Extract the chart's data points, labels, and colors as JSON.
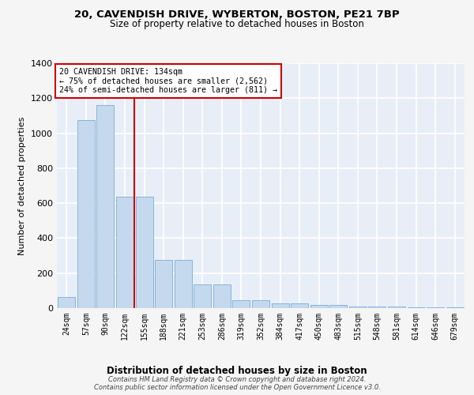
{
  "title": "20, CAVENDISH DRIVE, WYBERTON, BOSTON, PE21 7BP",
  "subtitle": "Size of property relative to detached houses in Boston",
  "xlabel": "Distribution of detached houses by size in Boston",
  "ylabel": "Number of detached properties",
  "categories": [
    "24sqm",
    "57sqm",
    "90sqm",
    "122sqm",
    "155sqm",
    "188sqm",
    "221sqm",
    "253sqm",
    "286sqm",
    "319sqm",
    "352sqm",
    "384sqm",
    "417sqm",
    "450sqm",
    "483sqm",
    "515sqm",
    "548sqm",
    "581sqm",
    "614sqm",
    "646sqm",
    "679sqm"
  ],
  "values": [
    65,
    1075,
    1160,
    635,
    635,
    275,
    275,
    135,
    135,
    45,
    45,
    25,
    25,
    20,
    20,
    10,
    10,
    8,
    5,
    5,
    3
  ],
  "bar_color": "#c5d9ee",
  "bar_edge_color": "#7aadd4",
  "vline_x": 3.5,
  "vline_color": "#cc0000",
  "annotation_title": "20 CAVENDISH DRIVE: 134sqm",
  "annotation_line1": "← 75% of detached houses are smaller (2,562)",
  "annotation_line2": "24% of semi-detached houses are larger (811) →",
  "annotation_box_color": "#ffffff",
  "annotation_box_edge": "#cc0000",
  "bg_color": "#e8eef8",
  "grid_color": "#ffffff",
  "fig_bg_color": "#f5f5f5",
  "footer": "Contains HM Land Registry data © Crown copyright and database right 2024.\nContains public sector information licensed under the Open Government Licence v3.0.",
  "ylim": [
    0,
    1400
  ],
  "yticks": [
    0,
    200,
    400,
    600,
    800,
    1000,
    1200,
    1400
  ]
}
